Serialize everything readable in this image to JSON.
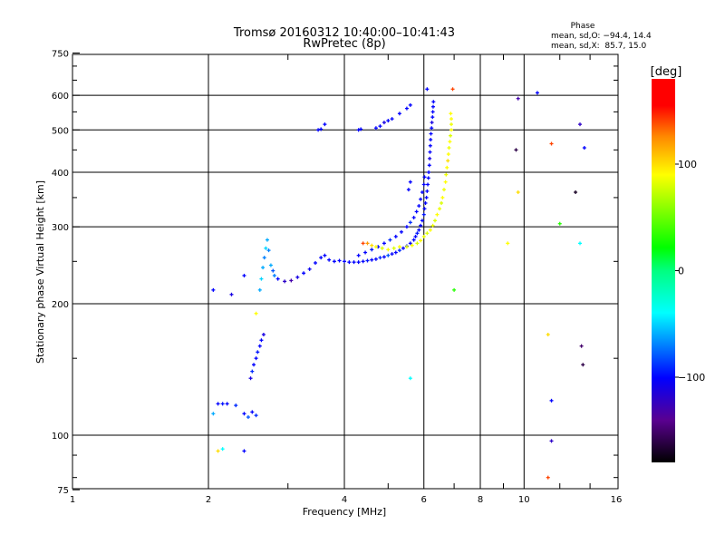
{
  "chart_data": {
    "type": "scatter",
    "title": "Tromsø 20160312 10:40:00–10:41:43",
    "subtitle": "RwPretec (8p)",
    "xlabel": "Frequency [MHz]",
    "ylabel": "Stationary phase Virtual Height [km]",
    "xscale": "log2",
    "yscale": "log10",
    "xlim": [
      1,
      16
    ],
    "ylim": [
      75,
      750
    ],
    "xticks": [
      1,
      2,
      4,
      6,
      8,
      10,
      16
    ],
    "xgrid": [
      2,
      4,
      6,
      8,
      10
    ],
    "yticks": [
      75,
      100,
      200,
      300,
      400,
      500,
      600,
      750
    ],
    "ygrid": [
      100,
      200,
      300,
      400,
      500,
      600
    ],
    "stats": {
      "heading": "Phase",
      "o_line": "mean, sd,O: −94.4, 14.4",
      "x_line": "mean, sd,X:  85.7, 15.0"
    },
    "colorbar": {
      "label": "[deg]",
      "range": [
        -180,
        180
      ],
      "ticks": [
        "100",
        "0",
        "−100"
      ],
      "tick_values": [
        100,
        0,
        -100
      ]
    },
    "point_format": [
      "frequency_MHz",
      "height_km",
      "phase_deg"
    ],
    "points": [
      [
        2.05,
        112,
        -60
      ],
      [
        2.1,
        118,
        -100
      ],
      [
        2.15,
        118,
        -95
      ],
      [
        2.2,
        118,
        -100
      ],
      [
        2.3,
        117,
        -90
      ],
      [
        2.4,
        112,
        -100
      ],
      [
        2.45,
        110,
        -80
      ],
      [
        2.5,
        113,
        -100
      ],
      [
        2.55,
        111,
        -90
      ],
      [
        2.48,
        135,
        -110
      ],
      [
        2.5,
        140,
        -90
      ],
      [
        2.52,
        145,
        -100
      ],
      [
        2.55,
        150,
        -100
      ],
      [
        2.57,
        155,
        -95
      ],
      [
        2.6,
        160,
        -100
      ],
      [
        2.62,
        165,
        -100
      ],
      [
        2.65,
        170,
        -110
      ],
      [
        2.6,
        215,
        -60
      ],
      [
        2.62,
        228,
        -50
      ],
      [
        2.64,
        242,
        -60
      ],
      [
        2.66,
        255,
        -70
      ],
      [
        2.68,
        268,
        -50
      ],
      [
        2.7,
        280,
        -60
      ],
      [
        2.72,
        265,
        -70
      ],
      [
        2.75,
        245,
        -60
      ],
      [
        2.78,
        238,
        -80
      ],
      [
        2.8,
        232,
        -70
      ],
      [
        2.85,
        228,
        -100
      ],
      [
        2.95,
        225,
        -120
      ],
      [
        3.05,
        226,
        -130
      ],
      [
        3.15,
        230,
        -110
      ],
      [
        3.25,
        235,
        -100
      ],
      [
        3.35,
        240,
        -105
      ],
      [
        3.45,
        248,
        -100
      ],
      [
        3.55,
        255,
        -100
      ],
      [
        3.62,
        258,
        -100
      ],
      [
        3.7,
        252,
        -100
      ],
      [
        3.8,
        250,
        -100
      ],
      [
        3.9,
        251,
        -100
      ],
      [
        4.0,
        250,
        -100
      ],
      [
        4.1,
        249,
        -100
      ],
      [
        4.2,
        249,
        -100
      ],
      [
        4.3,
        249,
        -100
      ],
      [
        4.4,
        250,
        -100
      ],
      [
        4.5,
        251,
        -95
      ],
      [
        4.6,
        252,
        -100
      ],
      [
        4.7,
        253,
        -100
      ],
      [
        4.8,
        255,
        -90
      ],
      [
        4.9,
        256,
        -100
      ],
      [
        5.0,
        258,
        -80
      ],
      [
        5.1,
        260,
        -100
      ],
      [
        5.2,
        262,
        -100
      ],
      [
        5.3,
        265,
        -90
      ],
      [
        5.4,
        268,
        -100
      ],
      [
        5.5,
        271,
        -95
      ],
      [
        5.6,
        275,
        -100
      ],
      [
        5.7,
        280,
        -100
      ],
      [
        5.75,
        285,
        -100
      ],
      [
        5.8,
        290,
        -95
      ],
      [
        5.85,
        295,
        -100
      ],
      [
        5.9,
        302,
        -100
      ],
      [
        5.95,
        310,
        -100
      ],
      [
        6.0,
        320,
        -95
      ],
      [
        6.02,
        330,
        -100
      ],
      [
        6.05,
        340,
        -100
      ],
      [
        6.08,
        350,
        -100
      ],
      [
        6.1,
        362,
        -100
      ],
      [
        6.12,
        375,
        -100
      ],
      [
        6.14,
        388,
        -100
      ],
      [
        6.15,
        400,
        -100
      ],
      [
        6.17,
        415,
        -100
      ],
      [
        6.18,
        430,
        -110
      ],
      [
        6.19,
        445,
        -100
      ],
      [
        6.2,
        460,
        -100
      ],
      [
        6.21,
        475,
        -100
      ],
      [
        6.22,
        490,
        -100
      ],
      [
        6.24,
        505,
        -100
      ],
      [
        6.25,
        520,
        -110
      ],
      [
        6.27,
        535,
        -100
      ],
      [
        6.28,
        550,
        -100
      ],
      [
        6.29,
        565,
        -100
      ],
      [
        6.3,
        580,
        -100
      ],
      [
        6.1,
        620,
        -100
      ],
      [
        4.3,
        258,
        -100
      ],
      [
        4.45,
        262,
        -100
      ],
      [
        4.6,
        266,
        -95
      ],
      [
        4.75,
        270,
        -100
      ],
      [
        4.9,
        275,
        -100
      ],
      [
        5.05,
        280,
        -90
      ],
      [
        5.2,
        285,
        -100
      ],
      [
        5.35,
        292,
        -100
      ],
      [
        5.5,
        300,
        -100
      ],
      [
        5.6,
        307,
        -90
      ],
      [
        5.7,
        315,
        -100
      ],
      [
        5.78,
        325,
        -100
      ],
      [
        5.85,
        335,
        -100
      ],
      [
        5.9,
        347,
        -100
      ],
      [
        5.95,
        360,
        -100
      ],
      [
        6.0,
        375,
        -100
      ],
      [
        6.02,
        390,
        -100
      ],
      [
        5.55,
        365,
        -100
      ],
      [
        5.6,
        380,
        -100
      ],
      [
        3.5,
        500,
        -100
      ],
      [
        3.55,
        502,
        -100
      ],
      [
        3.62,
        515,
        -100
      ],
      [
        4.3,
        500,
        -100
      ],
      [
        4.35,
        502,
        -100
      ],
      [
        4.7,
        505,
        -100
      ],
      [
        4.8,
        510,
        -100
      ],
      [
        4.9,
        520,
        -110
      ],
      [
        5.0,
        525,
        -100
      ],
      [
        5.1,
        530,
        -100
      ],
      [
        5.3,
        545,
        -100
      ],
      [
        5.5,
        560,
        -100
      ],
      [
        5.6,
        570,
        -100
      ],
      [
        4.4,
        275,
        140
      ],
      [
        4.5,
        275,
        120
      ],
      [
        4.6,
        272,
        100
      ],
      [
        4.7,
        270,
        90
      ],
      [
        4.85,
        268,
        80
      ],
      [
        5.0,
        266,
        90
      ],
      [
        5.15,
        268,
        80
      ],
      [
        5.3,
        270,
        90
      ],
      [
        5.5,
        270,
        85
      ],
      [
        5.65,
        272,
        90
      ],
      [
        5.8,
        275,
        80
      ],
      [
        5.9,
        279,
        90
      ],
      [
        6.0,
        285,
        85
      ],
      [
        6.1,
        290,
        80
      ],
      [
        6.2,
        295,
        90
      ],
      [
        6.28,
        302,
        85
      ],
      [
        6.35,
        310,
        80
      ],
      [
        6.42,
        320,
        90
      ],
      [
        6.5,
        330,
        85
      ],
      [
        6.56,
        340,
        80
      ],
      [
        6.6,
        350,
        90
      ],
      [
        6.65,
        365,
        85
      ],
      [
        6.7,
        380,
        90
      ],
      [
        6.72,
        395,
        85
      ],
      [
        6.75,
        410,
        90
      ],
      [
        6.78,
        425,
        100
      ],
      [
        6.8,
        440,
        90
      ],
      [
        6.82,
        455,
        85
      ],
      [
        6.85,
        470,
        90
      ],
      [
        6.87,
        485,
        80
      ],
      [
        6.9,
        500,
        90
      ],
      [
        6.9,
        515,
        85
      ],
      [
        6.9,
        530,
        90
      ],
      [
        6.88,
        545,
        90
      ],
      [
        6.95,
        620,
        140
      ],
      [
        2.05,
        215,
        -100
      ],
      [
        2.25,
        210,
        -110
      ],
      [
        2.4,
        232,
        -100
      ],
      [
        2.4,
        92,
        -100
      ],
      [
        11.5,
        120,
        -100
      ],
      [
        11.5,
        97,
        -120
      ],
      [
        10.7,
        608,
        -100
      ],
      [
        13.6,
        455,
        -100
      ],
      [
        13.3,
        515,
        -120
      ],
      [
        2.55,
        190,
        90
      ],
      [
        2.1,
        92,
        100
      ],
      [
        2.15,
        93,
        -40
      ],
      [
        9.2,
        275,
        90
      ],
      [
        11.3,
        170,
        100
      ],
      [
        12.0,
        305,
        30
      ],
      [
        11.5,
        465,
        140
      ],
      [
        11.3,
        80,
        140
      ],
      [
        9.7,
        360,
        100
      ],
      [
        5.6,
        135,
        -40
      ],
      [
        13.3,
        275,
        -40
      ],
      [
        9.6,
        450,
        -160
      ],
      [
        13.0,
        360,
        -170
      ],
      [
        13.4,
        160,
        -150
      ],
      [
        13.5,
        145,
        -160
      ],
      [
        9.7,
        590,
        -130
      ],
      [
        7.0,
        215,
        30
      ]
    ]
  }
}
